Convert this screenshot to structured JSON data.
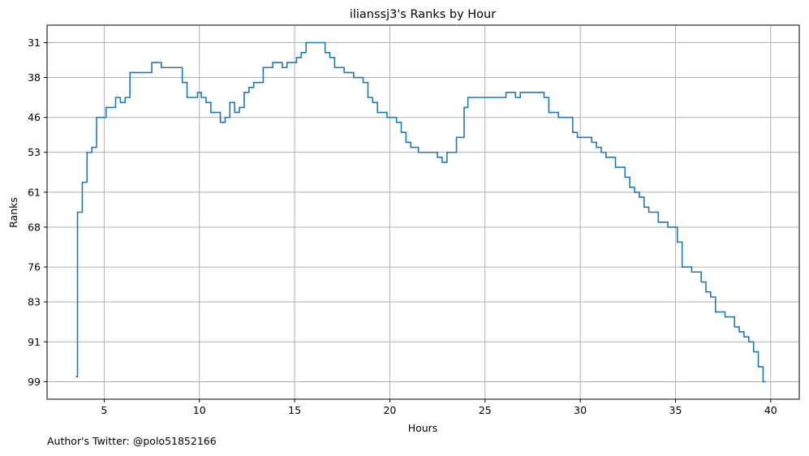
{
  "chart_data": {
    "type": "line",
    "step": true,
    "title": "ilianssj3's Ranks by Hour",
    "xlabel": "Hours",
    "ylabel": "Ranks",
    "xlim": [
      2.0,
      41.5
    ],
    "ylim": [
      102.5,
      27.5
    ],
    "y_inverted": true,
    "grid": true,
    "xticks": [
      5,
      10,
      15,
      20,
      25,
      30,
      35,
      40
    ],
    "yticks": [
      31,
      38,
      46,
      53,
      61,
      68,
      76,
      83,
      91,
      99
    ],
    "series_color": "#1f77b4",
    "series": [
      {
        "x": [
          3.5,
          3.6,
          3.85,
          4.1,
          4.35,
          4.6,
          5.1,
          5.6,
          5.85,
          6.1,
          6.35,
          7.5,
          8.0,
          9.1,
          9.35,
          9.9,
          10.1,
          10.35,
          10.6,
          11.1,
          11.35,
          11.6,
          11.85,
          12.1,
          12.35,
          12.6,
          12.85,
          13.35,
          13.85,
          14.35,
          14.6,
          15.1,
          15.35,
          15.6,
          16.1,
          16.6,
          16.85,
          17.1,
          17.6,
          18.1,
          18.6,
          18.85,
          19.1,
          19.35,
          19.85,
          20.35,
          20.6,
          20.85,
          21.1,
          21.5,
          21.85,
          22.5,
          22.75,
          23.0,
          23.5,
          23.9,
          24.1,
          26.1,
          26.6,
          26.85,
          28.1,
          28.35,
          28.85,
          29.6,
          29.85,
          30.6,
          30.85,
          31.1,
          31.35,
          31.85,
          32.35,
          32.6,
          32.85,
          33.1,
          33.35,
          33.6,
          34.1,
          34.6,
          35.1,
          35.35,
          35.85,
          36.35,
          36.6,
          36.85,
          37.1,
          37.6,
          38.1,
          38.35,
          38.6,
          38.85,
          39.1,
          39.35,
          39.6,
          39.75
        ],
        "y": [
          98,
          65,
          59,
          53,
          52,
          46,
          44,
          42,
          43,
          42,
          37,
          35,
          36,
          39,
          42,
          41,
          42,
          43,
          45,
          47,
          46,
          43,
          45,
          44,
          41,
          40,
          39,
          36,
          35,
          36,
          35,
          34,
          33,
          31,
          31,
          33,
          34,
          36,
          37,
          38,
          39,
          42,
          43,
          45,
          46,
          47,
          49,
          51,
          52,
          53,
          53,
          54,
          55,
          53,
          50,
          44,
          42,
          41,
          42,
          41,
          42,
          45,
          46,
          49,
          50,
          51,
          52,
          53,
          54,
          56,
          58,
          60,
          61,
          62,
          64,
          65,
          67,
          68,
          71,
          76,
          77,
          79,
          81,
          82,
          85,
          86,
          88,
          89,
          90,
          91,
          93,
          96,
          99,
          99
        ]
      }
    ],
    "footer": "Author's Twitter: @polo51852166"
  }
}
